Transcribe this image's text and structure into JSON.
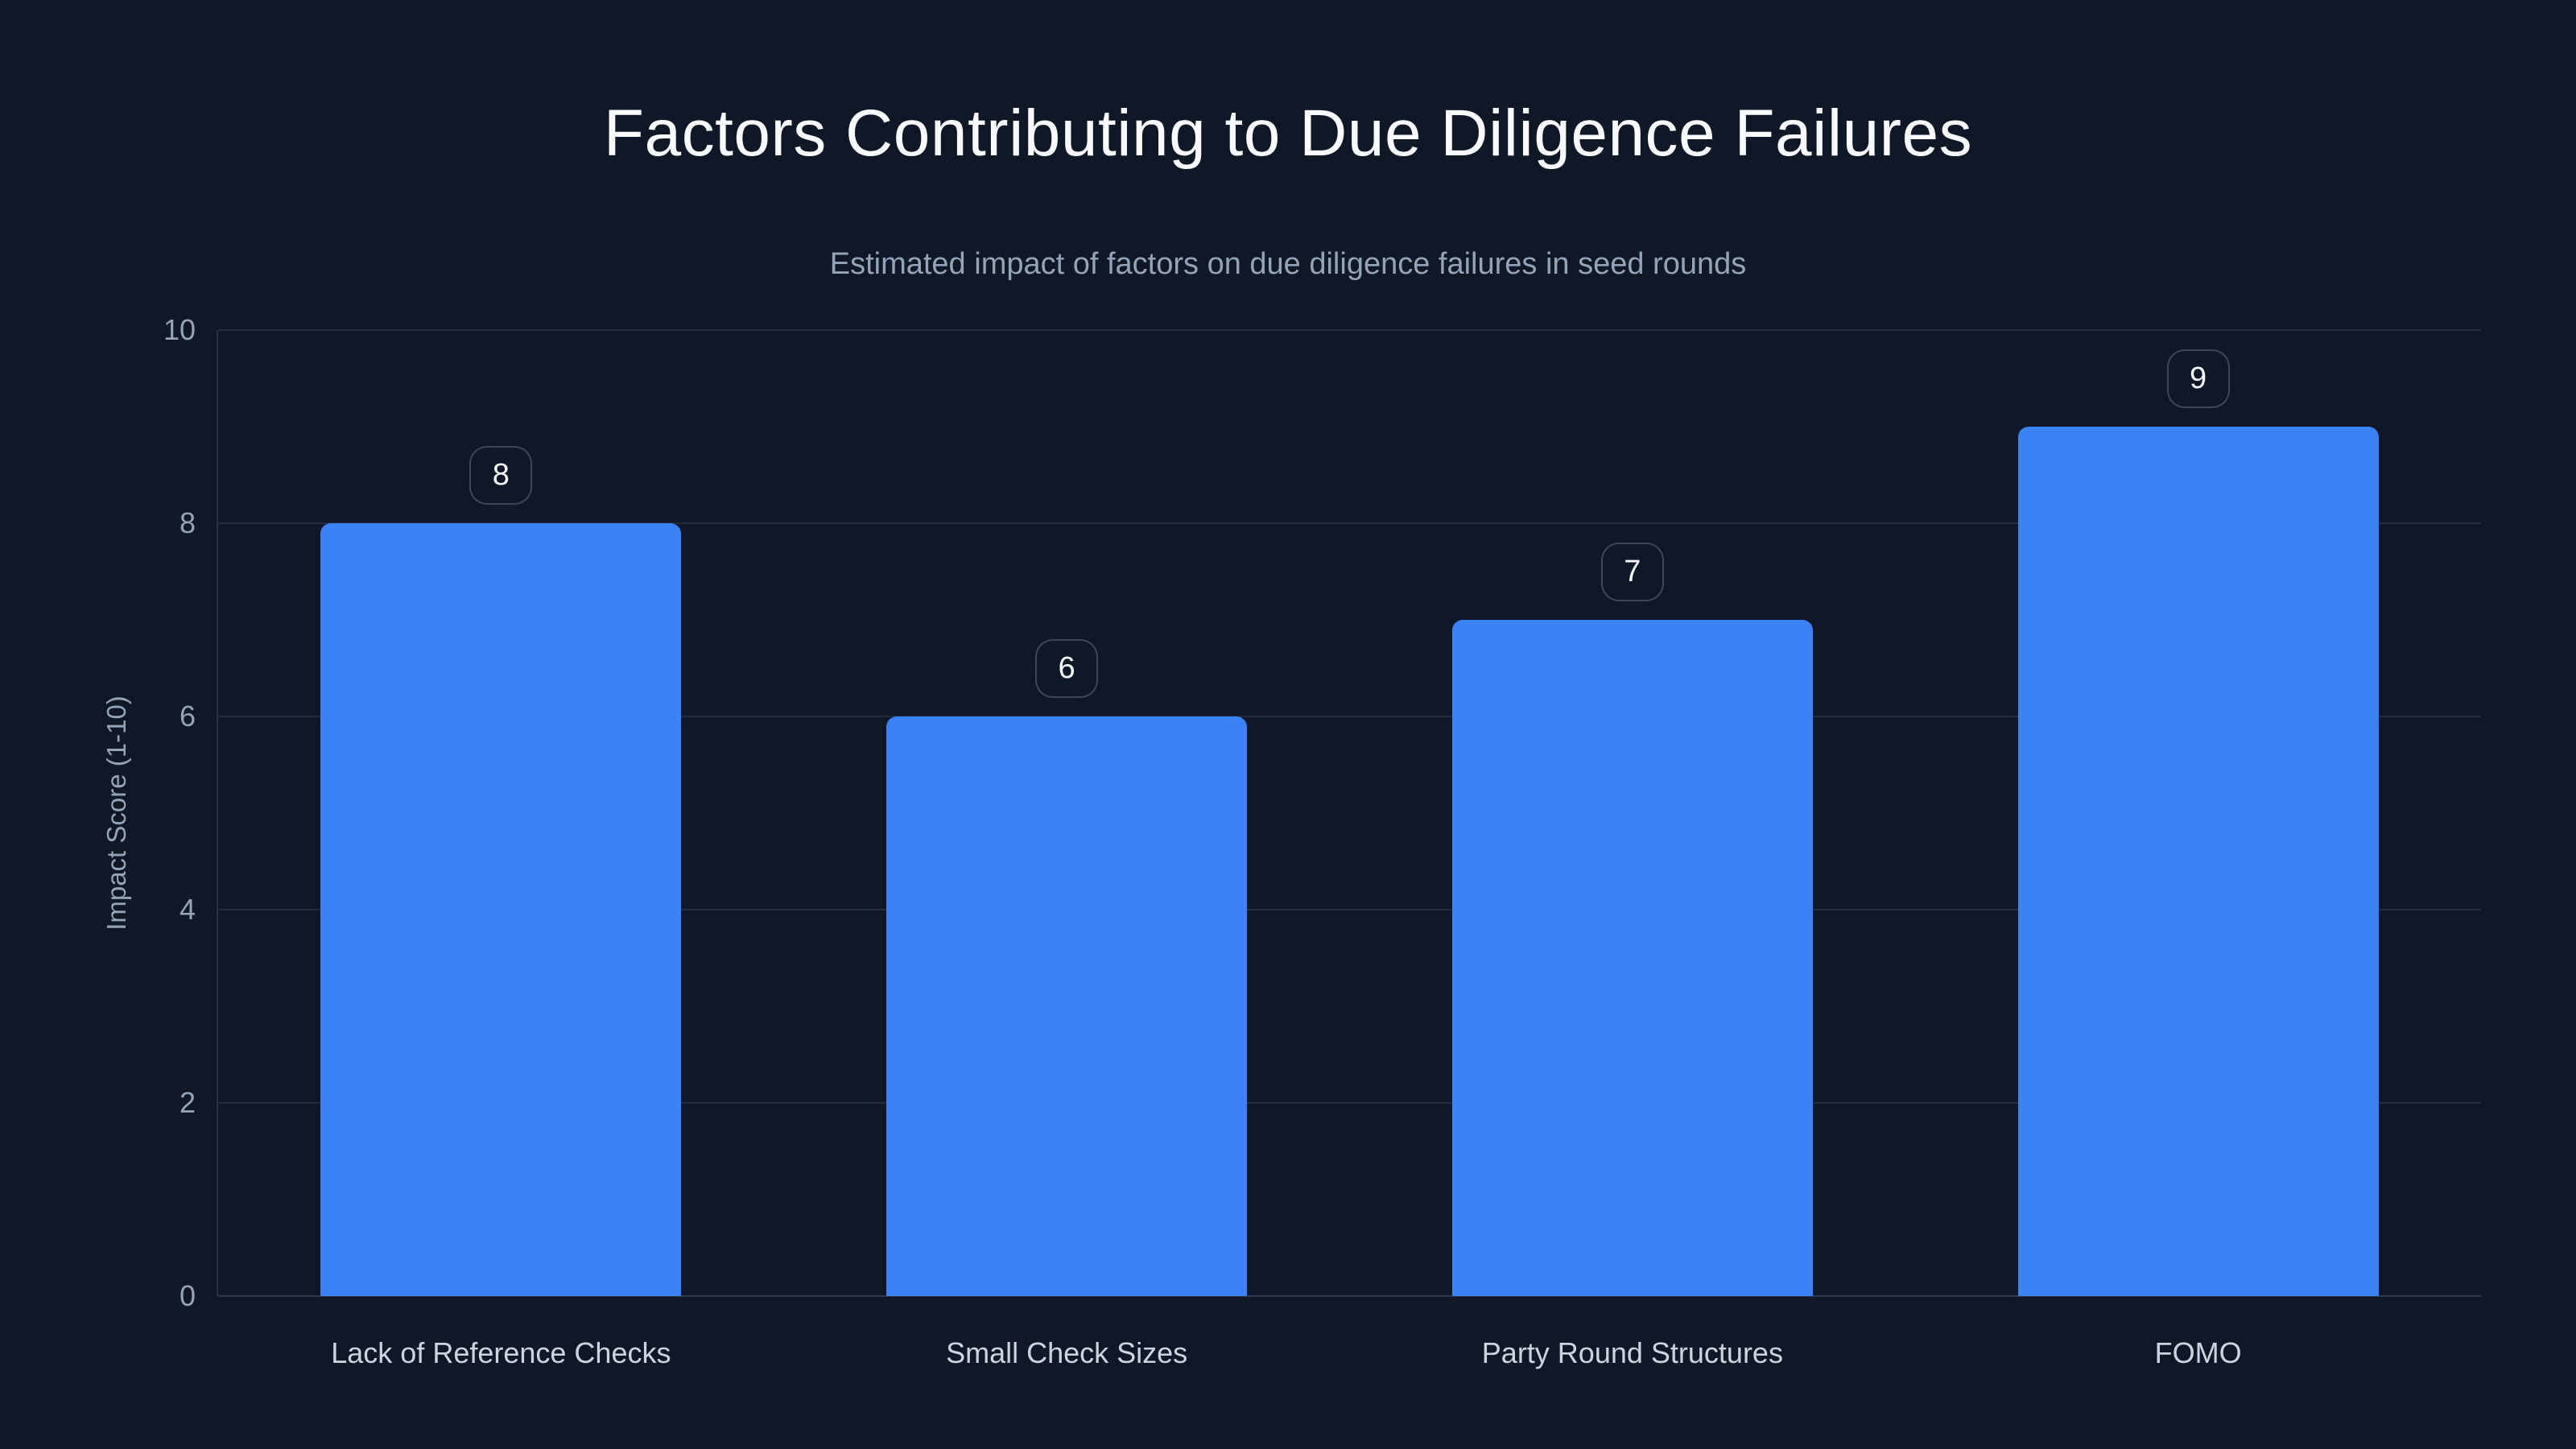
{
  "header": {
    "title": "Factors Contributing to Due Diligence Failures",
    "subtitle": "Estimated impact of factors on due diligence failures in seed rounds"
  },
  "chart_data": {
    "type": "bar",
    "title": "Factors Contributing to Due Diligence Failures",
    "subtitle": "Estimated impact of factors on due diligence failures in seed rounds",
    "categories": [
      "Lack of Reference Checks",
      "Small Check Sizes",
      "Party Round Structures",
      "FOMO"
    ],
    "values": [
      8,
      6,
      7,
      9
    ],
    "value_labels": [
      "8",
      "6",
      "7",
      "9"
    ],
    "xlabel": "",
    "ylabel": "Impact Score (1-10)",
    "ylim": [
      0,
      10
    ],
    "yticks": [
      0,
      2,
      4,
      6,
      8,
      10
    ],
    "grid": true,
    "legend": "none",
    "colors": {
      "background": "#101828",
      "bar_fill": "#3b82f6",
      "title_text": "#f8fafc",
      "subtitle_text": "#94a3b8",
      "tick_text": "#94a3b8",
      "category_text": "#cbd5e1",
      "gridline": "rgba(148,163,184,0.14)",
      "badge_border": "rgba(148,163,184,0.34)",
      "badge_text": "#f8fafc"
    }
  }
}
